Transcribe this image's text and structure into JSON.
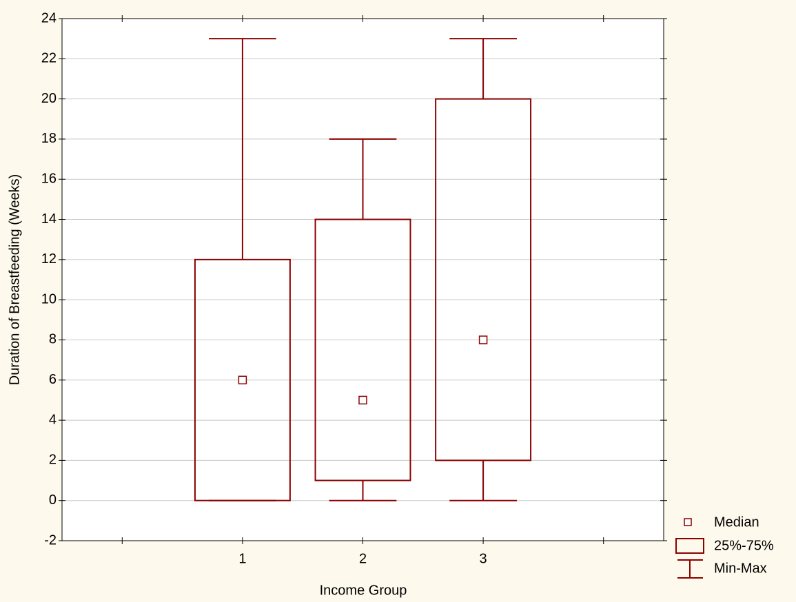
{
  "chart_data": {
    "type": "box",
    "x_label": "Income Group",
    "y_label": "Duration of Breastfeeding (Weeks)",
    "categories": [
      null,
      "1",
      "2",
      "3",
      null
    ],
    "min": [
      null,
      0,
      0,
      0,
      null
    ],
    "q1": [
      null,
      0,
      1,
      2,
      null
    ],
    "median": [
      null,
      6,
      5,
      8,
      null
    ],
    "q3": [
      null,
      12,
      14,
      20,
      null
    ],
    "max": [
      null,
      23,
      18,
      23,
      null
    ],
    "legend": [
      "Median",
      "25%-75%",
      "Min-Max"
    ],
    "color": "#8b0000",
    "ylim": [
      -2,
      24
    ],
    "yticks": [
      -2,
      0,
      2,
      4,
      6,
      8,
      10,
      12,
      14,
      16,
      18,
      20,
      22,
      24
    ],
    "grid": true
  }
}
